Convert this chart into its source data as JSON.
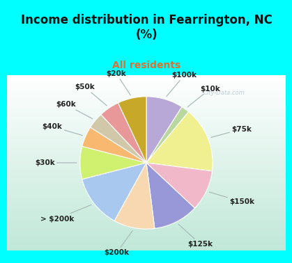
{
  "title": "Income distribution in Fearrington, NC\n(%)",
  "subtitle": "All residents",
  "title_color": "#111111",
  "subtitle_color": "#e07030",
  "background_top": "#00FFFF",
  "watermark": "City-Data.com",
  "labels": [
    "$100k",
    "$10k",
    "$75k",
    "$150k",
    "$125k",
    "$200k",
    "> $200k",
    "$30k",
    "$40k",
    "$60k",
    "$50k",
    "$20k"
  ],
  "values": [
    9,
    2,
    16,
    10,
    11,
    10,
    13,
    8,
    5,
    4,
    5,
    7
  ],
  "colors": [
    "#b8a8d8",
    "#b8d8a0",
    "#f0f090",
    "#f0b8c8",
    "#9898d8",
    "#f8d8b0",
    "#a8c8f0",
    "#d0f070",
    "#f8b870",
    "#d0c8a8",
    "#e89898",
    "#c8a828"
  ],
  "label_fontsize": 7.5,
  "title_fontsize": 12,
  "subtitle_fontsize": 10
}
